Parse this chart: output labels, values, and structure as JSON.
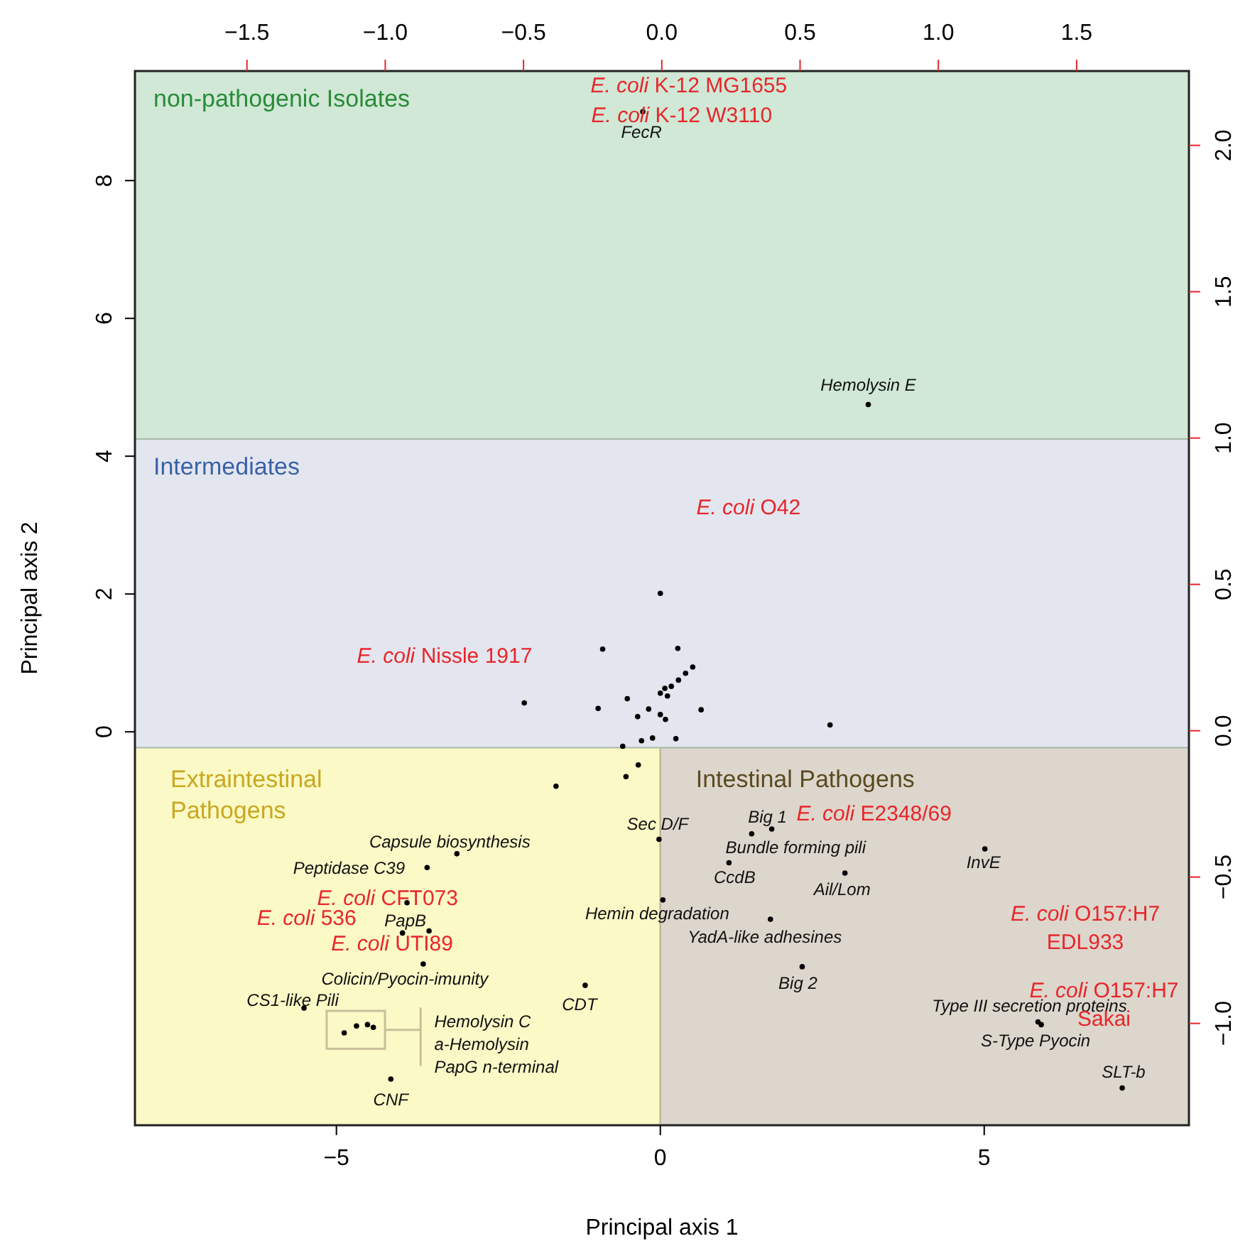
{
  "chart_data": {
    "type": "scatter",
    "xlabel": "Principal axis 1",
    "ylabel": "Principal axis 2",
    "xlim": [
      -8.11,
      8.16
    ],
    "xticks": [
      -5,
      0,
      5
    ],
    "ylim": [
      -5.71,
      9.59
    ],
    "yticks": [
      0,
      2,
      4,
      6,
      8
    ],
    "x2lim": [
      -1.905,
      1.906
    ],
    "x2ticks": [
      {
        "value": -1.5,
        "label": "−1.5"
      },
      {
        "value": -1,
        "label": "−1.0"
      },
      {
        "value": -0.5,
        "label": "−0.5"
      },
      {
        "value": 0,
        "label": "0.0"
      },
      {
        "value": 0.5,
        "label": "0.5"
      },
      {
        "value": 1,
        "label": "1.0"
      },
      {
        "value": 1.5,
        "label": "1.5"
      }
    ],
    "y2lim": [
      -1.348,
      2.254
    ],
    "y2ticks": [
      {
        "value": -1,
        "label": "−1.0"
      },
      {
        "value": -0.5,
        "label": "−0.5"
      },
      {
        "value": 0,
        "label": "0.0"
      },
      {
        "value": 0.5,
        "label": "0.5"
      },
      {
        "value": 1,
        "label": "1.0"
      },
      {
        "value": 1.5,
        "label": "1.5"
      },
      {
        "value": 2,
        "label": "2.0"
      }
    ],
    "grid": false,
    "bands": [
      {
        "axis": "x",
        "from": -8.11,
        "to": 0,
        "label": "Extraintestinal\nPathogens",
        "color": "#fbf9c6"
      },
      {
        "axis": "x",
        "from": 0,
        "to": 8.16,
        "label": "Intestinal Pathogens",
        "color": "#ddd6cc"
      },
      {
        "axis": "y",
        "from": -0.23,
        "to": 4.25,
        "label": "Intermediates",
        "color": "#e4e6ef"
      },
      {
        "axis": "y",
        "from": 4.25,
        "to": 9.59,
        "label": "non-pathogenic Isolates",
        "color": "#d0e8d5"
      }
    ],
    "series": [
      {
        "color": "#000000",
        "marker": "circle",
        "x": [
          -0.27,
          3.21,
          0.0,
          -0.89,
          0.27,
          0.5,
          0.39,
          0.28,
          0.07,
          0.17,
          0.11,
          0.0,
          -2.1,
          -0.96,
          -0.51,
          -0.18,
          0.63,
          -0.35,
          0.0,
          0.08,
          2.62,
          -0.12,
          0.24,
          -0.29,
          -0.58,
          -0.34,
          -0.53,
          -1.61,
          -0.02,
          -3.14,
          -3.6,
          -3.91,
          0.04,
          -3.57,
          -3.98,
          -3.66,
          -1.16,
          -5.5,
          -4.88,
          -4.69,
          -4.52,
          -4.43,
          -4.16,
          1.72,
          1.41,
          1.06,
          2.85,
          5.01,
          1.7,
          2.19,
          5.83,
          5.88,
          7.13
        ],
        "values": [
          9.0,
          4.75,
          2.01,
          1.2,
          1.21,
          0.94,
          0.85,
          0.75,
          0.63,
          0.66,
          0.52,
          0.56,
          0.42,
          0.34,
          0.48,
          0.33,
          0.32,
          0.22,
          0.25,
          0.18,
          0.1,
          -0.09,
          -0.1,
          -0.13,
          -0.21,
          -0.48,
          -0.65,
          -0.79,
          -1.56,
          -1.77,
          -1.97,
          -2.48,
          -2.44,
          -2.89,
          -2.92,
          -3.37,
          -3.68,
          -4.01,
          -4.37,
          -4.27,
          -4.25,
          -4.29,
          -5.04,
          -1.41,
          -1.48,
          -1.9,
          -2.05,
          -1.7,
          -2.72,
          -3.41,
          -4.21,
          -4.25,
          -5.17
        ]
      }
    ],
    "annotations": [
      {
        "text": "FecR",
        "x": -0.27,
        "y": 9.0
      },
      {
        "text": "Hemolysin E",
        "x": 3.21,
        "y": 4.75
      },
      {
        "text": "Sec D/F",
        "x": -0.02,
        "y": -1.56
      },
      {
        "text": "Big 1",
        "x": 1.72,
        "y": -1.41
      },
      {
        "text": "Bundle forming pili",
        "x": 1.41,
        "y": -1.48
      },
      {
        "text": "CcdB",
        "x": 1.06,
        "y": -1.9
      },
      {
        "text": "Ail/Lom",
        "x": 2.85,
        "y": -2.05
      },
      {
        "text": "InvE",
        "x": 5.01,
        "y": -1.7
      },
      {
        "text": "Capsule biosynthesis",
        "x": -3.14,
        "y": -1.77
      },
      {
        "text": "Peptidase C39",
        "x": -3.6,
        "y": -1.97
      },
      {
        "text": "Hemin degradation",
        "x": 0.04,
        "y": -2.44
      },
      {
        "text": "PapB",
        "x": -3.98,
        "y": -2.92
      },
      {
        "text": "YadA-like adhesines",
        "x": 1.7,
        "y": -2.72
      },
      {
        "text": "Colicin/Pyocin-imunity",
        "x": -3.66,
        "y": -3.37
      },
      {
        "text": "CS1-like Pili",
        "x": -5.5,
        "y": -4.01
      },
      {
        "text": "CDT",
        "x": -1.16,
        "y": -3.68
      },
      {
        "text": "Big 2",
        "x": 2.19,
        "y": -3.41
      },
      {
        "text": "Type III secretion proteins",
        "x": 5.83,
        "y": -4.21
      },
      {
        "text": "S-Type Pyocin",
        "x": 5.88,
        "y": -4.25
      },
      {
        "text": "SLT-b",
        "x": 7.13,
        "y": -5.17
      },
      {
        "text": "CNF",
        "x": -4.16,
        "y": -5.04
      },
      "Hemolysin C",
      "a-Hemolysin",
      "PapG n-terminal",
      "E. coli K-12 MG1655",
      "E. coli K-12 W3110",
      "E. coli O42",
      "E. coli Nissle 1917",
      "E. coli E2348/69",
      "E. coli CFT073",
      "E. coli 536",
      "E. coli UTI89",
      "E. coli O157:H7\nEDL933",
      "E. coli O157:H7\nSakai"
    ]
  }
}
